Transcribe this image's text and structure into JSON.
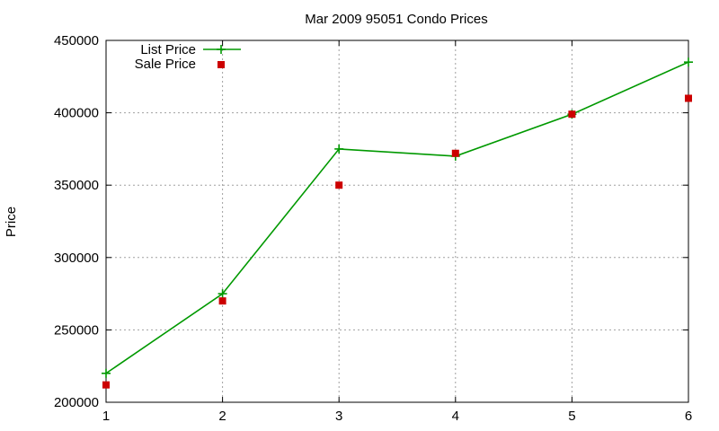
{
  "chart_data": {
    "type": "line",
    "title": "Mar 2009 95051 Condo Prices",
    "xlabel": "",
    "ylabel": "Price",
    "xlim": [
      1,
      6
    ],
    "ylim": [
      200000,
      450000
    ],
    "x_ticks": [
      1,
      2,
      3,
      4,
      5,
      6
    ],
    "y_ticks": [
      200000,
      250000,
      300000,
      350000,
      400000,
      450000
    ],
    "grid": true,
    "legend_position": "top-left",
    "series": [
      {
        "name": "List Price",
        "style": "linespoints",
        "marker": "plus",
        "color": "#009900",
        "x": [
          1,
          2,
          3,
          4,
          5,
          6
        ],
        "values": [
          220000,
          275000,
          375000,
          370000,
          399000,
          435000
        ]
      },
      {
        "name": "Sale Price",
        "style": "points",
        "marker": "square",
        "color": "#cc0000",
        "x": [
          1,
          2,
          3,
          4,
          5,
          6
        ],
        "values": [
          212000,
          270000,
          350000,
          372000,
          399000,
          410000
        ]
      }
    ]
  }
}
